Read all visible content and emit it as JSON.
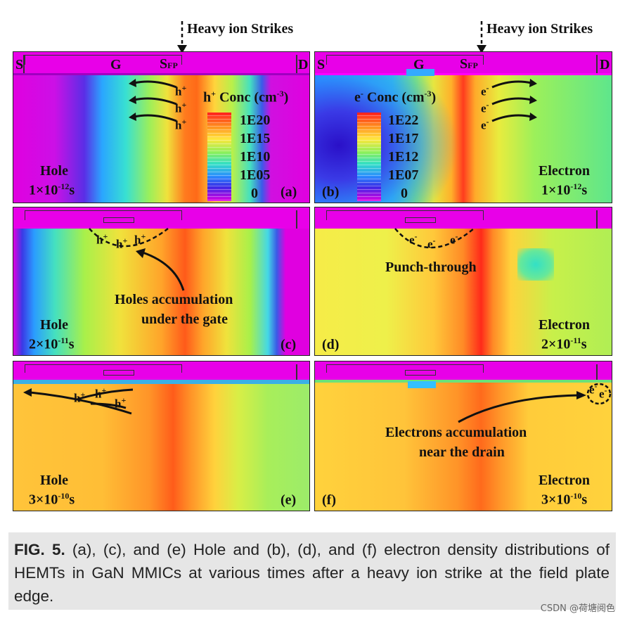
{
  "figure": {
    "strike_label": "Heavy ion Strikes",
    "terminals": {
      "source": "S",
      "gate": "G",
      "field_plate": "S",
      "field_plate_sub": "FP",
      "drain": "D"
    },
    "colorbar_hole": {
      "title_prefix": "h",
      "title_sup": "+",
      "title_rest": " Conc (cm",
      "title_unit_sup": "-3",
      "title_close": ")",
      "ticks": [
        "1E20",
        "1E15",
        "1E10",
        "1E05",
        "0"
      ]
    },
    "colorbar_electron": {
      "title_prefix": "e",
      "title_sup": "-",
      "title_rest": " Conc (cm",
      "title_unit_sup": "-3",
      "title_close": ")",
      "ticks": [
        "1E22",
        "1E17",
        "1E12",
        "1E07",
        "0"
      ]
    },
    "panels": [
      {
        "tag": "(a)",
        "species": "Hole",
        "time_base": "1×10",
        "time_exp": "-12",
        "time_unit": "s"
      },
      {
        "tag": "(b)",
        "species": "Electron",
        "time_base": "1×10",
        "time_exp": "-12",
        "time_unit": "s"
      },
      {
        "tag": "(c)",
        "species": "Hole",
        "time_base": "2×10",
        "time_exp": "-11",
        "time_unit": "s"
      },
      {
        "tag": "(d)",
        "species": "Electron",
        "time_base": "2×10",
        "time_exp": "-11",
        "time_unit": "s"
      },
      {
        "tag": "(e)",
        "species": "Hole",
        "time_base": "3×10",
        "time_exp": "-10",
        "time_unit": "s"
      },
      {
        "tag": "(f)",
        "species": "Electron",
        "time_base": "3×10",
        "time_exp": "-10",
        "time_unit": "s"
      }
    ],
    "annotations": {
      "carrier_h": "h",
      "carrier_h_sup": "+",
      "carrier_e": "e",
      "carrier_e_sup": "-",
      "holes_accum_line1": "Holes accumulation",
      "holes_accum_line2": "under the gate",
      "punch_through": "Punch-through",
      "electrons_accum_line1": "Electrons accumulation",
      "electrons_accum_line2": "near the drain"
    }
  },
  "caption": {
    "label": "FIG. 5.",
    "text": " (a), (c), and (e) Hole and (b), (d), and (f) electron density distributions of HEMTs in GaN MMICs at various times after a heavy ion strike at the field plate edge."
  },
  "watermark": "CSDN @荷塘阅色"
}
